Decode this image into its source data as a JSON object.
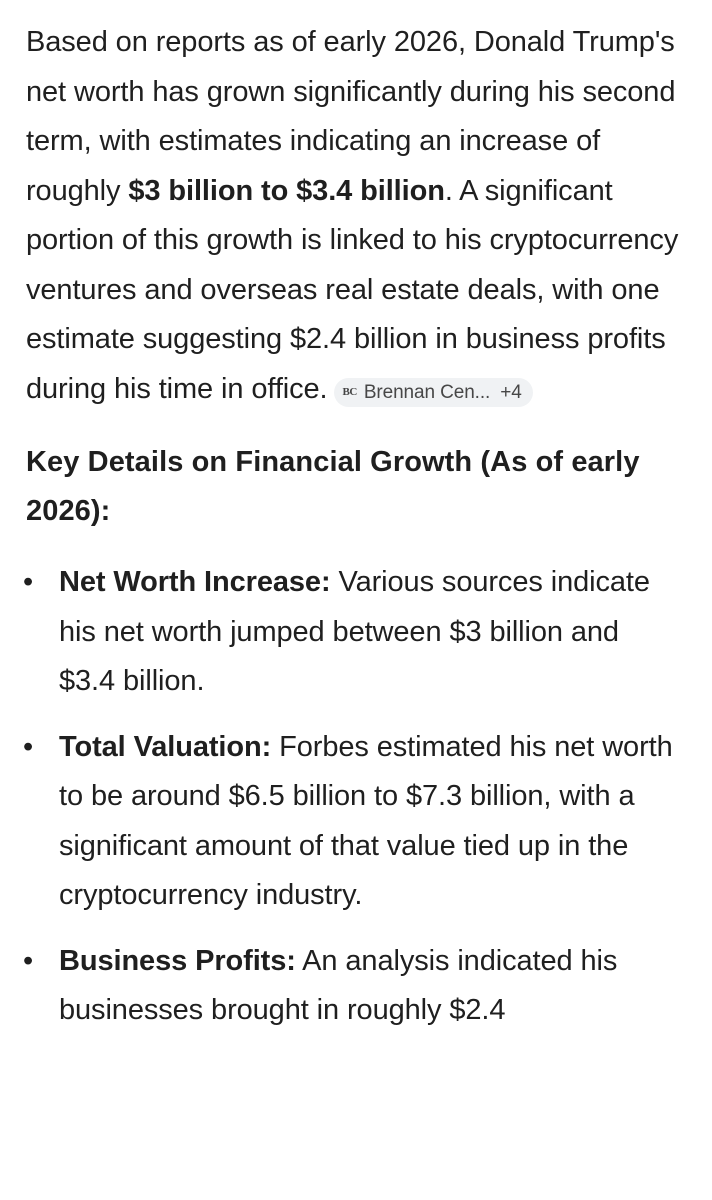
{
  "answer": {
    "intro_text_1": "Based on reports as of early 2026, Donald Trump's net worth has grown significantly during his second term, with estimates indicating an increase of roughly ",
    "intro_bold": "$3 billion to $3.4 billion",
    "intro_text_2": ". A significant portion of this growth is linked to his cryptocurrency ventures and overseas real estate deals, with one estimate suggesting $2.4 billion in business profits during his time in office.",
    "source_chip": {
      "logo": "BC",
      "label": "Brennan Cen...",
      "count": "+4",
      "icon": "brennan-center-logo"
    }
  },
  "section": {
    "heading": "Key Details on Financial Growth (As of early 2026):",
    "bullet_glyph": "•",
    "items": [
      {
        "title": "Net Worth Increase:",
        "text": " Various sources indicate his net worth jumped between $3 billion and $3.4 billion."
      },
      {
        "title": "Total Valuation:",
        "text": " Forbes estimated his net worth to be around $6.5 billion to $7.3 billion, with a significant amount of that value tied up in the cryptocurrency industry."
      },
      {
        "title": "Business Profits:",
        "text": " An analysis indicated his businesses brought in roughly $2.4"
      }
    ]
  }
}
